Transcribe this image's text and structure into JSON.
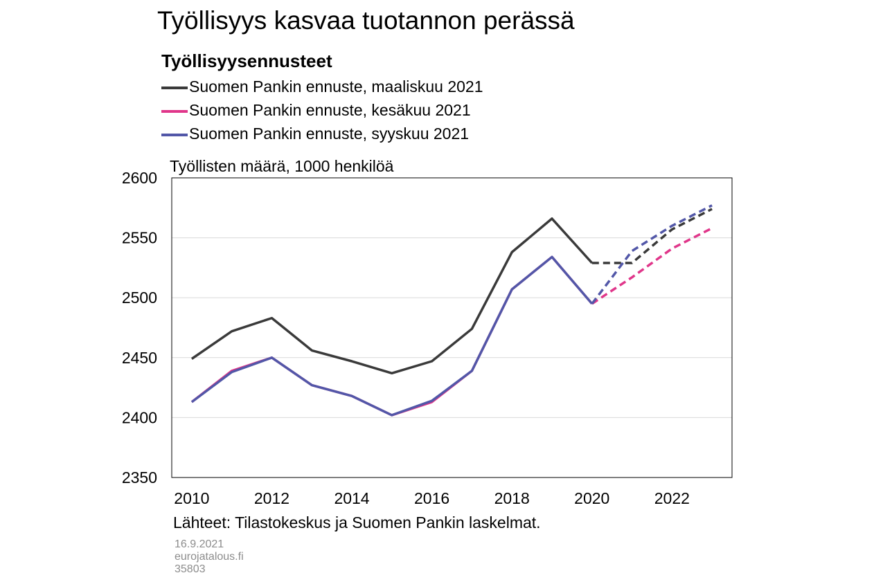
{
  "header": {
    "title": "Työllisyys kasvaa tuotannon perässä",
    "subtitle": "Työllisyysennusteet"
  },
  "legend": {
    "items": [
      {
        "label": "Suomen Pankin ennuste, maaliskuu 2021",
        "color": "#3a3a3a"
      },
      {
        "label": "Suomen Pankin ennuste, kesäkuu 2021",
        "color": "#e0368a"
      },
      {
        "label": "Suomen Pankin ennuste, syyskuu 2021",
        "color": "#5257a8"
      }
    ]
  },
  "axis": {
    "unit_label": "Työllisten määrä, 1000 henkilöä"
  },
  "footer": {
    "source": "Lähteet: Tilastokeskus ja Suomen Pankin laskelmat.",
    "date": "16.9.2021",
    "site": "eurojatalous.fi",
    "id": "35803"
  },
  "chart_data": {
    "type": "line",
    "title": "Työllisyysennusteet",
    "ylabel": "Työllisten määrä, 1000 henkilöä",
    "xlabel": "",
    "ylim": [
      2350,
      2600
    ],
    "yticks": [
      2350,
      2400,
      2450,
      2500,
      2550,
      2600
    ],
    "xlim": [
      2010,
      2023
    ],
    "xticks": [
      2010,
      2012,
      2014,
      2016,
      2018,
      2020,
      2022
    ],
    "grid": "horizontal",
    "legend_position": "top",
    "x": [
      2010,
      2011,
      2012,
      2013,
      2014,
      2015,
      2016,
      2017,
      2018,
      2019,
      2020,
      2021,
      2022,
      2023
    ],
    "series": [
      {
        "name": "Suomen Pankin ennuste, maaliskuu 2021",
        "color": "#3a3a3a",
        "values": [
          2449,
          2472,
          2483,
          2456,
          2447,
          2437,
          2447,
          2474,
          2538,
          2566,
          2529,
          2529,
          2557,
          2574
        ],
        "forecast_from": 2020
      },
      {
        "name": "Suomen Pankin ennuste, kesäkuu 2021",
        "color": "#e0368a",
        "values": [
          2413,
          2439,
          2450,
          2427,
          2418,
          2402,
          2413,
          2439,
          2507,
          2534,
          2495,
          2517,
          2541,
          2558
        ],
        "forecast_from": 2020
      },
      {
        "name": "Suomen Pankin ennuste, syyskuu 2021",
        "color": "#5257a8",
        "values": [
          2413,
          2438,
          2450,
          2427,
          2418,
          2402,
          2414,
          2439,
          2507,
          2534,
          2495,
          2539,
          2560,
          2577
        ],
        "forecast_from": 2020
      }
    ]
  }
}
